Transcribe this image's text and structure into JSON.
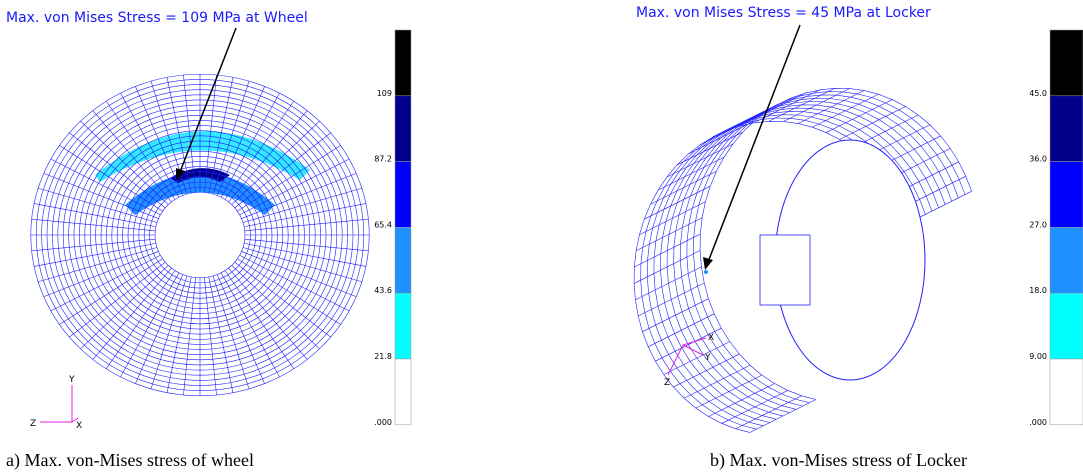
{
  "panels": [
    {
      "annotation": "Max. von Mises Stress = 109 MPa at Wheel",
      "legend_labels": [
        "109",
        "87.2",
        "65.4",
        "43.6",
        "21.8",
        ".000"
      ],
      "legend_colors": [
        "#000000",
        "#00008b",
        "#0000ff",
        "#1e90ff",
        "#00ffff",
        "#ffffff"
      ],
      "triad": [
        "Y",
        "Z",
        "X"
      ],
      "caption": "a) Max. von-Mises stress of wheel"
    },
    {
      "annotation": "Max. von Mises Stress = 45 MPa at Locker",
      "legend_labels": [
        "45.0",
        "36.0",
        "27.0",
        "18.0",
        "9.00",
        ".000"
      ],
      "legend_colors": [
        "#000000",
        "#00008b",
        "#0000ff",
        "#1e90ff",
        "#00ffff",
        "#ffffff"
      ],
      "triad": [
        "X",
        "Y",
        "Z"
      ],
      "caption": "b) Max. von-Mises stress of Locker"
    }
  ]
}
